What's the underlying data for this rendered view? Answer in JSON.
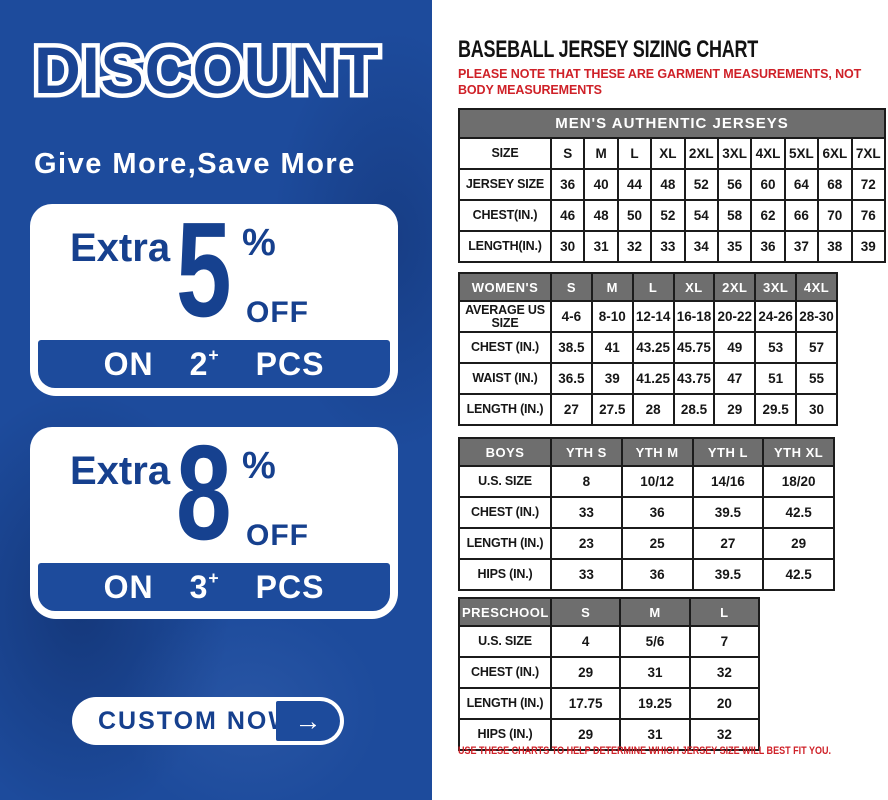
{
  "colors": {
    "panel_blue": "#1d4b9c",
    "text_blue": "#16408e",
    "header_gray": "#6e6e6e",
    "note_red": "#cf2128"
  },
  "left_panel": {
    "title": "DISCOUNT",
    "tagline": "Give More,Save More",
    "offers": [
      {
        "extra": "Extra",
        "percent": "5",
        "percent_sign": "%",
        "off": "OFF",
        "on": "ON",
        "qty": "2",
        "plus": "+",
        "pcs": "PCS"
      },
      {
        "extra": "Extra",
        "percent": "8",
        "percent_sign": "%",
        "off": "OFF",
        "on": "ON",
        "qty": "3",
        "plus": "+",
        "pcs": "PCS"
      }
    ],
    "cta": {
      "label": "CUSTOM NOW",
      "arrow": "→"
    }
  },
  "right_panel": {
    "title": "BASEBALL JERSEY SIZING CHART",
    "note": "PLEASE NOTE THAT THESE ARE GARMENT MEASUREMENTS, NOT BODY MEASUREMENTS",
    "footer": "USE THESE CHARTS TO HELP DETERMINE WHICH JERSEY SIZE WILL BEST FIT YOU.",
    "tables": [
      {
        "name": "mens",
        "banner": "MEN'S AUTHENTIC JERSEYS",
        "rows": [
          [
            "SIZE",
            "S",
            "M",
            "L",
            "XL",
            "2XL",
            "3XL",
            "4XL",
            "5XL",
            "6XL",
            "7XL"
          ],
          [
            "JERSEY SIZE",
            "36",
            "40",
            "44",
            "48",
            "52",
            "56",
            "60",
            "64",
            "68",
            "72"
          ],
          [
            "CHEST(IN.)",
            "46",
            "48",
            "50",
            "52",
            "54",
            "58",
            "62",
            "66",
            "70",
            "76"
          ],
          [
            "LENGTH(IN.)",
            "30",
            "31",
            "32",
            "33",
            "34",
            "35",
            "36",
            "37",
            "38",
            "39"
          ]
        ]
      },
      {
        "name": "womens",
        "header_cells": [
          "WOMEN'S",
          "S",
          "M",
          "L",
          "XL",
          "2XL",
          "3XL",
          "4XL"
        ],
        "rows": [
          [
            "AVERAGE US SIZE",
            "4-6",
            "8-10",
            "12-14",
            "16-18",
            "20-22",
            "24-26",
            "28-30"
          ],
          [
            "CHEST (IN.)",
            "38.5",
            "41",
            "43.25",
            "45.75",
            "49",
            "53",
            "57"
          ],
          [
            "WAIST (IN.)",
            "36.5",
            "39",
            "41.25",
            "43.75",
            "47",
            "51",
            "55"
          ],
          [
            "LENGTH (IN.)",
            "27",
            "27.5",
            "28",
            "28.5",
            "29",
            "29.5",
            "30"
          ]
        ]
      },
      {
        "name": "boys",
        "header_cells": [
          "BOYS",
          "YTH S",
          "YTH M",
          "YTH L",
          "YTH XL"
        ],
        "rows": [
          [
            "U.S. SIZE",
            "8",
            "10/12",
            "14/16",
            "18/20"
          ],
          [
            "CHEST (IN.)",
            "33",
            "36",
            "39.5",
            "42.5"
          ],
          [
            "LENGTH (IN.)",
            "23",
            "25",
            "27",
            "29"
          ],
          [
            "HIPS (IN.)",
            "33",
            "36",
            "39.5",
            "42.5"
          ]
        ]
      },
      {
        "name": "preschool",
        "header_cells": [
          "PRESCHOOL",
          "S",
          "M",
          "L"
        ],
        "rows": [
          [
            "U.S. SIZE",
            "4",
            "5/6",
            "7"
          ],
          [
            "CHEST (IN.)",
            "29",
            "31",
            "32"
          ],
          [
            "LENGTH (IN.)",
            "17.75",
            "19.25",
            "20"
          ],
          [
            "HIPS (IN.)",
            "29",
            "31",
            "32"
          ]
        ]
      }
    ]
  }
}
